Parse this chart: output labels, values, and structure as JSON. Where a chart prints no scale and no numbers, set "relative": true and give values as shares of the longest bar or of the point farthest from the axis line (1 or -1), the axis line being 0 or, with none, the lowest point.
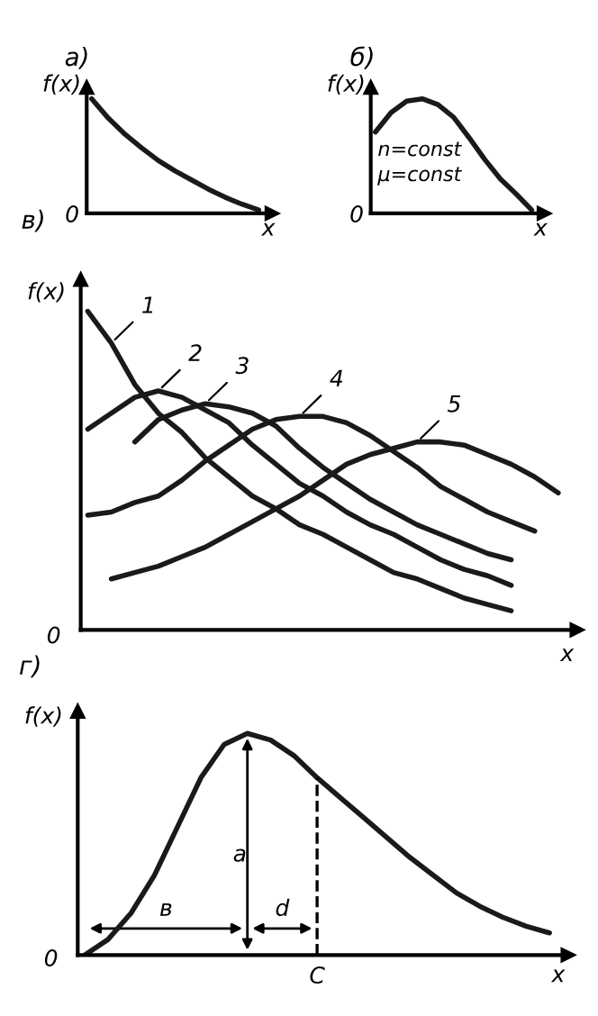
{
  "chart_data": [
    {
      "type": "line",
      "title": "а)",
      "ylabel": "f(x)",
      "xlabel": "x",
      "relative": true,
      "annotations": [
        "0"
      ],
      "categories": [
        null,
        null,
        null,
        null,
        null,
        null,
        null,
        null,
        null,
        null,
        null
      ],
      "series": [
        {
          "color": "#1a1a1a",
          "values": [
            1.0,
            0.83,
            0.69,
            0.57,
            0.46,
            0.37,
            0.29,
            0.21,
            0.14,
            0.08,
            0.03
          ]
        }
      ]
    },
    {
      "type": "line",
      "title": "б)",
      "ylabel": "f(x)",
      "xlabel": "x",
      "relative": true,
      "annotations": [
        "0",
        "n=const",
        "μ=const"
      ],
      "categories": [
        null,
        null,
        null,
        null,
        null,
        null,
        null,
        null,
        null,
        null,
        null
      ],
      "series": [
        {
          "color": "#1a1a1a",
          "values": [
            0.71,
            0.88,
            0.98,
            1.0,
            0.95,
            0.84,
            0.66,
            0.47,
            0.3,
            0.17,
            0.03
          ]
        }
      ]
    },
    {
      "type": "line",
      "title": "в)",
      "ylabel": "f(x)",
      "xlabel": "x",
      "relative": true,
      "annotations": [
        "0"
      ],
      "categories": [
        null,
        null,
        null,
        null,
        null,
        null,
        null,
        null,
        null,
        null,
        null,
        null,
        null,
        null,
        null,
        null,
        null,
        null,
        null,
        null,
        null
      ],
      "series": [
        {
          "name": "1",
          "color": "#1a1a1a",
          "values": [
            1.0,
            0.9,
            0.77,
            0.68,
            0.62,
            0.54,
            0.48,
            0.42,
            0.38,
            0.33,
            0.3,
            0.26,
            0.22,
            0.18,
            0.16,
            0.13,
            0.1,
            0.08,
            0.06,
            null,
            null
          ]
        },
        {
          "name": "2",
          "color": "#1a1a1a",
          "values": [
            0.63,
            0.68,
            0.73,
            0.75,
            0.73,
            0.69,
            0.65,
            0.58,
            0.52,
            0.46,
            0.42,
            0.37,
            0.33,
            0.3,
            0.26,
            0.22,
            0.19,
            0.17,
            0.14,
            null,
            null
          ]
        },
        {
          "name": "3",
          "color": "#1a1a1a",
          "values": [
            null,
            null,
            0.59,
            0.66,
            0.69,
            0.71,
            0.7,
            0.68,
            0.64,
            0.57,
            0.51,
            0.46,
            0.41,
            0.37,
            0.33,
            0.3,
            0.27,
            0.24,
            0.22,
            null,
            null
          ]
        },
        {
          "name": "4",
          "color": "#1a1a1a",
          "values": [
            0.36,
            0.37,
            0.4,
            0.42,
            0.47,
            0.53,
            0.58,
            0.63,
            0.66,
            0.67,
            0.67,
            0.65,
            0.61,
            0.56,
            0.51,
            0.45,
            0.41,
            0.37,
            0.34,
            0.31,
            null
          ]
        },
        {
          "name": "5",
          "color": "#1a1a1a",
          "values": [
            null,
            0.16,
            0.18,
            0.2,
            0.23,
            0.26,
            0.3,
            0.34,
            0.38,
            0.42,
            0.47,
            0.52,
            0.55,
            0.57,
            0.59,
            0.59,
            0.58,
            0.55,
            0.52,
            0.48,
            0.43
          ]
        }
      ]
    },
    {
      "type": "line",
      "title": "г)",
      "ylabel": "f(x)",
      "xlabel": "x",
      "relative": true,
      "annotations": [
        "0",
        "a",
        "в",
        "d",
        "C"
      ],
      "categories": [
        null,
        null,
        null,
        null,
        null,
        null,
        null,
        null,
        null,
        null,
        null,
        null,
        null,
        null,
        null,
        null,
        null,
        null,
        null,
        null,
        null
      ],
      "series": [
        {
          "color": "#1a1a1a",
          "values": [
            0,
            0.07,
            0.19,
            0.36,
            0.58,
            0.8,
            0.95,
            1.0,
            0.97,
            0.9,
            0.8,
            0.71,
            0.62,
            0.53,
            0.44,
            0.36,
            0.28,
            0.22,
            0.17,
            0.13,
            0.1
          ]
        }
      ]
    }
  ]
}
